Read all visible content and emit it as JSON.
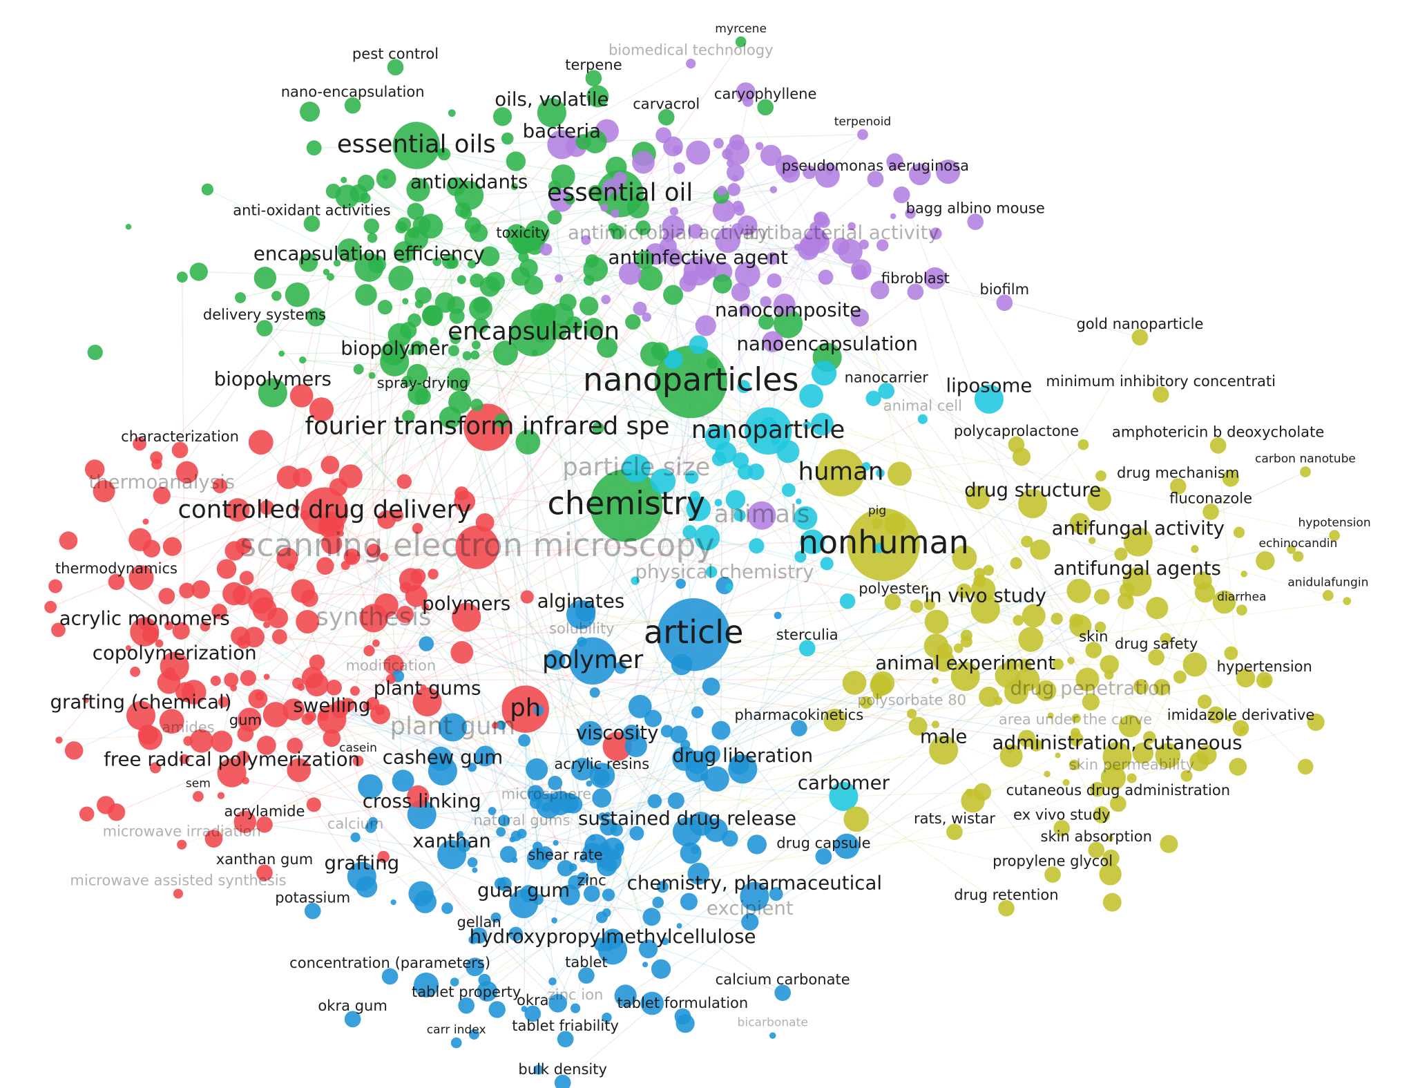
{
  "clusters": [
    {
      "color": "#2db34a",
      "labels": [
        "myrcene",
        "pest control",
        "terpene",
        "nano-encapsulation",
        "oils, volatile",
        "carvacrol",
        "caryophyllene",
        "essential oils",
        "antioxidants",
        "essential oil",
        "anti-oxidant activities",
        "encapsulation efficiency",
        "delivery systems",
        "encapsulation",
        "biopolymer",
        "biopolymers",
        "spray-drying",
        "nanocomposite",
        "nanoencapsulation",
        "chemistry",
        "toxicity",
        "nanoparticles"
      ]
    },
    {
      "color": "#b07fe0",
      "labels": [
        "biomedical technology",
        "terpenoid",
        "bacteria",
        "pseudomonas aeruginosa",
        "bagg albino mouse",
        "antiinfective agent",
        "fibroblast",
        "biofilm",
        "animals",
        "antimicrobial activity",
        "antibacterial activity"
      ]
    },
    {
      "color": "#1fc7df",
      "labels": [
        "nanocarrier",
        "nanoparticle",
        "liposome",
        "animal cell",
        "sterculia",
        "carbomer",
        "particle size"
      ]
    },
    {
      "color": "#c3c22c",
      "labels": [
        "gold nanoparticle",
        "minimum inhibitory concentrati",
        "polycaprolactone",
        "amphotericin b deoxycholate",
        "carbon nanotube",
        "human",
        "drug mechanism",
        "drug structure",
        "fluconazole",
        "pig",
        "hypotension",
        "antifungal activity",
        "nonhuman",
        "echinocandin",
        "antifungal agents",
        "anidulafungin",
        "polyester",
        "in vivo study",
        "diarrhea",
        "skin",
        "drug safety",
        "hypertension",
        "animal experiment",
        "polysorbate 80",
        "drug penetration",
        "area under the curve",
        "imidazole derivative",
        "male",
        "administration, cutaneous",
        "skin permeability",
        "cutaneous drug administration",
        "rats, wistar",
        "ex vivo study",
        "skin absorption",
        "propylene glycol",
        "drug retention"
      ]
    },
    {
      "color": "#f0474c",
      "labels": [
        "characterization",
        "thermoanalysis",
        "controlled drug delivery",
        "fourier transform infrared spe",
        "scanning electron microscopy",
        "thermodynamics",
        "acrylic monomers",
        "copolymerization",
        "grafting (chemical)",
        "swelling",
        "plant gums",
        "ph",
        "viscosity",
        "amides",
        "gum",
        "free radical polymerization",
        "casein",
        "sem",
        "acrylamide",
        "microwave irradiation",
        "xanthan gum",
        "microwave assisted synthesis",
        "polymers",
        "synthesis",
        "modification"
      ]
    },
    {
      "color": "#1f93d6",
      "labels": [
        "alginates",
        "solubility",
        "article",
        "polymer",
        "pharmacokinetics",
        "drug liberation",
        "cashew gum",
        "acrylic resins",
        "cross linking",
        "microsphere",
        "natural gums",
        "sustained drug release",
        "xanthan",
        "grafting",
        "shear rate",
        "zinc",
        "chemistry, pharmaceutical",
        "guar gum",
        "potassium",
        "excipient",
        "drug capsule",
        "gellan",
        "hydroxypropylmethylcellulose",
        "concentration (parameters)",
        "tablet",
        "calcium carbonate",
        "tablet property",
        "okra",
        "zinc ion",
        "okra gum",
        "tablet formulation",
        "bicarbonate",
        "carr index",
        "tablet friability",
        "bulk density",
        "physical chemistry",
        "calcium",
        "plant gum"
      ]
    }
  ]
}
